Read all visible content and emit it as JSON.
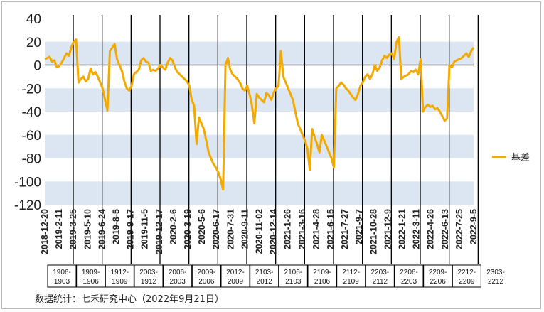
{
  "chart_data": {
    "type": "line",
    "ylim": [
      -120,
      40
    ],
    "y_ticks": [
      40,
      20,
      0,
      -20,
      -40,
      -60,
      -80,
      -100,
      -120
    ],
    "band_color": "#dce6f2",
    "line_color": "#f2a900",
    "x_tick_labels": [
      "2018-12-20",
      "2019-2-11",
      "2019-3-25",
      "2019-5-10",
      "2019-6-24",
      "2019-8-5",
      "2019-9-17",
      "2019-11-5",
      "2019-12-17",
      "2020-2-6",
      "2020-3-19",
      "2020-5-6",
      "2020-6-17",
      "2020-7-31",
      "2020-9-11",
      "2020-11-02",
      "2020-12-14",
      "2021-1-26",
      "2021-3-16",
      "2021-4-28",
      "2021-6-15",
      "2021-7-27",
      "2021-9-7",
      "2021-10-28",
      "2021-12-9",
      "2022-1-21",
      "2022-3-11",
      "2022-4-26",
      "2022-6-13",
      "2022-7-25",
      "2022-9-5"
    ],
    "contracts": [
      "1906-1903",
      "1909-1906",
      "1912-1909",
      "2003-1912",
      "2006-2003",
      "2009-2006",
      "2012-2009",
      "2103-2012",
      "2106-2103",
      "2109-2106",
      "2112-2109",
      "2203-2112",
      "2206-2203",
      "2209-2206",
      "2212-2209",
      "2303-2212"
    ],
    "series": [
      {
        "name": "基差",
        "values": [
          5,
          6,
          7,
          3,
          4,
          -2,
          -1,
          2,
          6,
          10,
          8,
          15,
          20,
          22,
          -15,
          -12,
          -10,
          -14,
          -12,
          -3,
          -8,
          -6,
          -10,
          -15,
          -20,
          -30,
          -39,
          12,
          15,
          18,
          5,
          0,
          -5,
          -14,
          -20,
          -22,
          -18,
          -8,
          -6,
          -4,
          4,
          6,
          3,
          2,
          -5,
          -4,
          -5,
          -3,
          0,
          -2,
          -4,
          2,
          6,
          4,
          -2,
          -6,
          -8,
          -10,
          -12,
          -14,
          -18,
          -30,
          -35,
          -68,
          -45,
          -50,
          -55,
          -65,
          -75,
          -80,
          -85,
          -88,
          -92,
          -98,
          -107,
          0,
          6,
          -4,
          -8,
          -10,
          -12,
          -15,
          -20,
          -22,
          -18,
          -25,
          -35,
          -50,
          -25,
          -28,
          -30,
          -32,
          -24,
          -26,
          -30,
          -24,
          -20,
          -18,
          12,
          -10,
          -15,
          -20,
          -25,
          -30,
          -40,
          -50,
          -55,
          -60,
          -65,
          -72,
          -90,
          -55,
          -62,
          -68,
          -75,
          -60,
          -65,
          -70,
          -75,
          -80,
          -88,
          -20,
          -18,
          -15,
          -17,
          -20,
          -22,
          -25,
          -28,
          -30,
          -25,
          -18,
          -15,
          -10,
          -8,
          -12,
          -8,
          0,
          -5,
          -2,
          4,
          8,
          6,
          9,
          10,
          5,
          20,
          24,
          -12,
          -10,
          -9,
          -8,
          -5,
          -6,
          -4,
          -8,
          5,
          -40,
          -36,
          -34,
          -36,
          -35,
          -38,
          -37,
          -40,
          -44,
          -48,
          -46,
          0,
          -2,
          3,
          4,
          5,
          6,
          8,
          10,
          7,
          12,
          15
        ]
      }
    ]
  },
  "legend": {
    "label": "基差"
  },
  "footer": {
    "source": "数据统计：七禾研究中心（2022年9月21日）"
  }
}
